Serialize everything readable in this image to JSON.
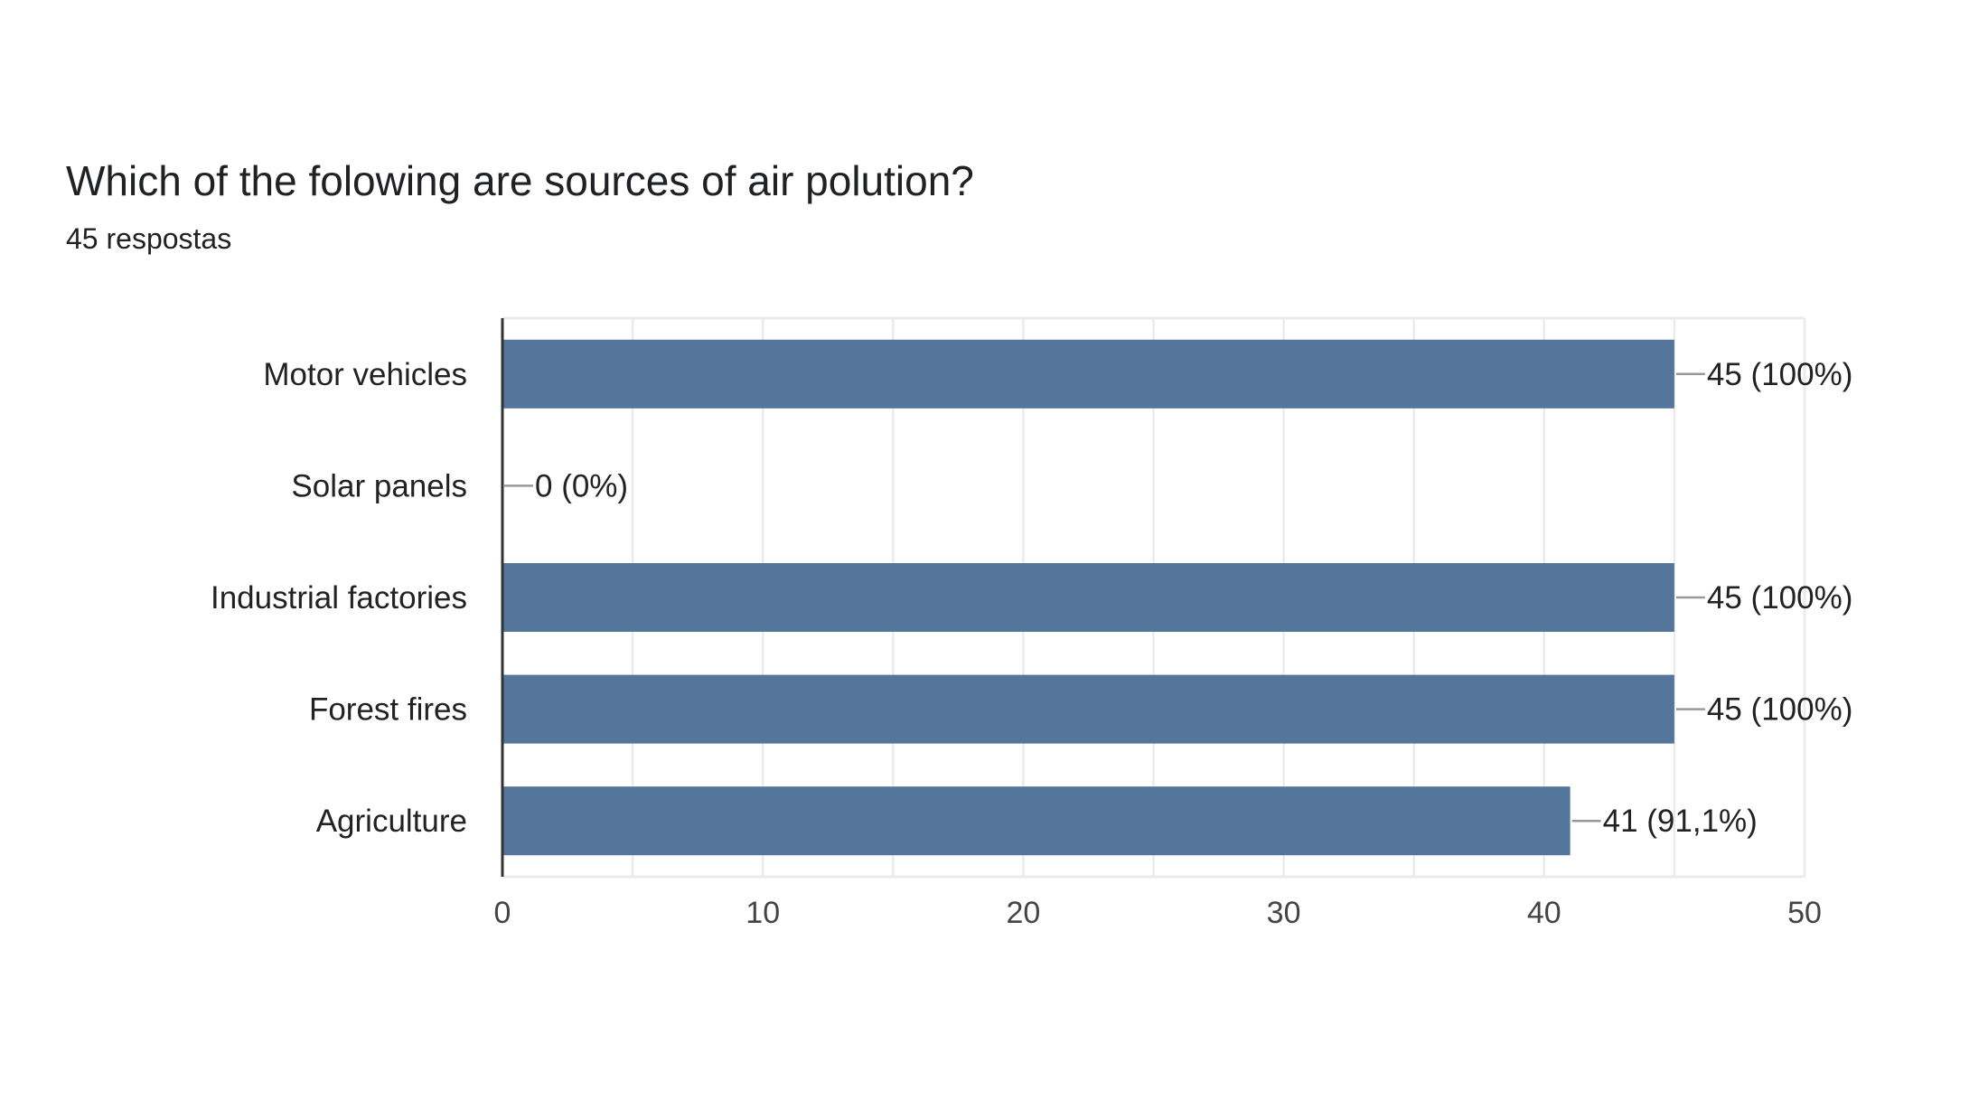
{
  "header": {
    "title": "Which of the folowing are sources of air polution?",
    "subtitle": "45 respostas"
  },
  "colors": {
    "bar": "#54769d",
    "axis": "#333333",
    "grid": "#ebebeb",
    "leader": "#999999"
  },
  "chart_data": {
    "type": "bar",
    "orientation": "horizontal",
    "categories": [
      "Motor vehicles",
      "Solar panels",
      "Industrial factories",
      "Forest fires",
      "Agriculture"
    ],
    "values": [
      45,
      0,
      45,
      45,
      41
    ],
    "data_labels": [
      "45 (100%)",
      "0 (0%)",
      "45 (100%)",
      "45 (100%)",
      "41 (91,1%)"
    ],
    "xlim": [
      0,
      50
    ],
    "xticks": [
      0,
      10,
      20,
      30,
      40,
      50
    ],
    "grid": true,
    "legend": "none"
  }
}
